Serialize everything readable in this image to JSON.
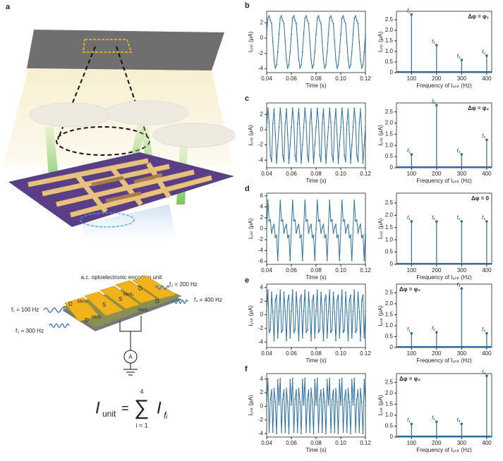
{
  "figure": {
    "panel_labels": [
      "a",
      "b",
      "c",
      "d",
      "e",
      "f"
    ],
    "illustration": {
      "unit_title": "a.c. optoelectronic encoding unit",
      "frequencies": [
        "f₁ = 100 Hz",
        "f₂ = 200 Hz",
        "f₃ = 300 Hz",
        "f₄ = 400 Hz"
      ],
      "electrodes": [
        "D",
        "S",
        "S",
        "D",
        "D",
        "D"
      ],
      "materials": [
        "MoS₂",
        "MoS₂",
        "MoS₂",
        "MoS₂"
      ],
      "meter": "A"
    },
    "equation": {
      "lhs": "I",
      "lhs_sub": "unit",
      "eq": "=",
      "sum": "∑",
      "upper": "4",
      "lower": "i = 1",
      "term": "I",
      "term_sub": "fᵢ"
    }
  },
  "chart_data": [
    {
      "type": "line",
      "color": "#2b6fa0",
      "xlabel": "Time (s)",
      "ylabel": "Iᵤₙᵢₜ (μA)",
      "x": [
        0.04,
        0.041,
        0.042,
        0.043,
        0.044,
        0.045,
        0.046,
        0.047,
        0.048,
        0.049,
        0.05,
        0.051,
        0.052,
        0.053,
        0.054,
        0.055,
        0.056,
        0.057,
        0.058,
        0.059,
        0.06,
        0.061,
        0.062,
        0.063,
        0.064,
        0.065,
        0.066,
        0.067,
        0.068,
        0.069,
        0.07,
        0.071,
        0.072,
        0.073,
        0.074,
        0.075,
        0.076,
        0.077,
        0.078,
        0.079,
        0.08,
        0.081,
        0.082,
        0.083,
        0.084,
        0.085,
        0.086,
        0.087,
        0.088,
        0.089,
        0.09,
        0.091,
        0.092,
        0.093,
        0.094,
        0.095,
        0.096,
        0.097,
        0.098,
        0.099,
        0.1,
        0.101,
        0.102,
        0.103,
        0.104,
        0.105,
        0.106,
        0.107,
        0.108,
        0.109,
        0.11,
        0.111,
        0.112,
        0.113,
        0.114,
        0.115,
        0.116,
        0.117,
        0.118,
        0.119,
        0.12
      ],
      "values": [
        0.5,
        2.6,
        2.9,
        2.3,
        1.9,
        -0.5,
        -2.8,
        -3.9,
        -3.5,
        -1.8,
        0.5,
        2.6,
        2.9,
        2.3,
        1.9,
        -0.5,
        -2.8,
        -3.9,
        -3.5,
        -1.8,
        0.5,
        2.6,
        2.9,
        2.3,
        1.9,
        -0.5,
        -2.8,
        -3.9,
        -3.5,
        -1.8,
        0.5,
        2.6,
        2.9,
        2.3,
        1.9,
        -0.5,
        -2.8,
        -3.9,
        -3.5,
        -1.8,
        0.5,
        2.6,
        2.9,
        2.3,
        1.9,
        -0.5,
        -2.8,
        -3.9,
        -3.5,
        -1.8,
        0.5,
        2.6,
        2.9,
        2.3,
        1.9,
        -0.5,
        -2.8,
        -3.9,
        -3.5,
        -1.8,
        0.5,
        2.6,
        2.9,
        2.3,
        1.9,
        -0.5,
        -2.8,
        -3.9,
        -3.5,
        -1.8,
        0.5,
        2.6,
        2.9,
        2.3,
        1.9,
        -0.5,
        -2.8,
        -3.9,
        -3.5,
        -1.8,
        0.5
      ],
      "xlim": [
        0.04,
        0.12
      ],
      "xticks": [
        0.04,
        0.06,
        0.08,
        {
          "value": 0.1,
          "label": "0.10"
        },
        0.12
      ],
      "ylim": [
        -4.5,
        3.5
      ],
      "yticks": [
        -4,
        -2,
        0,
        2
      ]
    },
    {
      "type": "stem",
      "color": "#2b6fa0",
      "xlabel": "Frequency of Iᵤₙᵢₜ (Hz)",
      "ylabel": "Iᵤₙᵢₜ (μA)",
      "note": "Δφ = φ₁",
      "note_position": "top-right",
      "x": [
        100,
        200,
        300,
        400
      ],
      "values": [
        2.75,
        1.3,
        0.6,
        0.8
      ],
      "annotations": [
        "f₁",
        "f₂",
        "f₃",
        "f₄"
      ],
      "xlim": [
        40,
        420
      ],
      "xticks": [
        100,
        200,
        300,
        400
      ],
      "ylim": [
        0,
        2.9
      ],
      "yticks": [
        0,
        0.5,
        {
          "value": 1,
          "label": "1.0"
        },
        1.5,
        {
          "value": 2,
          "label": "2.0"
        },
        2.5
      ]
    },
    {
      "type": "line",
      "color": "#2b6fa0",
      "xlabel": "Time (s)",
      "ylabel": "Iᵤₙᵢₜ (μA)",
      "x": [
        0.04,
        0.041,
        0.042,
        0.043,
        0.044,
        0.045,
        0.046,
        0.047,
        0.048,
        0.049,
        0.05,
        0.051,
        0.052,
        0.053,
        0.054,
        0.055,
        0.056,
        0.057,
        0.058,
        0.059,
        0.06,
        0.061,
        0.062,
        0.063,
        0.064,
        0.065,
        0.066,
        0.067,
        0.068,
        0.069,
        0.07,
        0.071,
        0.072,
        0.073,
        0.074,
        0.075,
        0.076,
        0.077,
        0.078,
        0.079,
        0.08,
        0.081,
        0.082,
        0.083,
        0.084,
        0.085,
        0.086,
        0.087,
        0.088,
        0.089,
        0.09,
        0.091,
        0.092,
        0.093,
        0.094,
        0.095,
        0.096,
        0.097,
        0.098,
        0.099,
        0.1,
        0.101,
        0.102,
        0.103,
        0.104,
        0.105,
        0.106,
        0.107,
        0.108,
        0.109,
        0.11,
        0.111,
        0.112,
        0.113,
        0.114,
        0.115,
        0.116,
        0.117,
        0.118,
        0.119,
        0.12
      ],
      "values": [
        0.3,
        2.8,
        1.0,
        -3.4,
        -4.2,
        0.8,
        2.7,
        -0.6,
        -4.4,
        -2.0,
        0.3,
        2.8,
        1.0,
        -3.4,
        -4.2,
        0.8,
        2.7,
        -0.6,
        -4.4,
        -2.0,
        0.3,
        2.8,
        1.0,
        -3.4,
        -4.2,
        0.8,
        2.7,
        -0.6,
        -4.4,
        -2.0,
        0.3,
        2.8,
        1.0,
        -3.4,
        -4.2,
        0.8,
        2.7,
        -0.6,
        -4.4,
        -2.0,
        0.3,
        2.8,
        1.0,
        -3.4,
        -4.2,
        0.8,
        2.7,
        -0.6,
        -4.4,
        -2.0,
        0.3,
        2.8,
        1.0,
        -3.4,
        -4.2,
        0.8,
        2.7,
        -0.6,
        -4.4,
        -2.0,
        0.3,
        2.8,
        1.0,
        -3.4,
        -4.2,
        0.8,
        2.7,
        -0.6,
        -4.4,
        -2.0,
        0.3,
        2.8,
        1.0,
        -3.4,
        -4.2,
        0.8,
        2.7,
        -0.6,
        -4.4,
        -2.0,
        0.3
      ],
      "xlim": [
        0.04,
        0.12
      ],
      "xticks": [
        0.04,
        0.06,
        0.08,
        {
          "value": 0.1,
          "label": "0.10"
        },
        0.12
      ],
      "ylim": [
        -5,
        3.5
      ],
      "yticks": [
        -4,
        -2,
        0,
        2
      ]
    },
    {
      "type": "stem",
      "color": "#2b6fa0",
      "xlabel": "Frequency of Iᵤₙᵢₜ (Hz)",
      "ylabel": "Iᵤₙᵢₜ (μA)",
      "note": "Δφ = φ₂",
      "note_position": "top-right",
      "x": [
        100,
        200,
        300,
        400
      ],
      "values": [
        0.6,
        2.8,
        0.6,
        1.25
      ],
      "annotations": [
        "f₁",
        "f₂",
        "f₃",
        "f₄"
      ],
      "xlim": [
        40,
        420
      ],
      "xticks": [
        100,
        200,
        300,
        400
      ],
      "ylim": [
        0,
        2.9
      ],
      "yticks": [
        0,
        0.5,
        {
          "value": 1,
          "label": "1.0"
        },
        1.5,
        {
          "value": 2,
          "label": "2.0"
        },
        2.5
      ]
    },
    {
      "type": "line",
      "color": "#2b6fa0",
      "xlabel": "Time (s)",
      "ylabel": "Iᵤₙᵢₜ (μA)",
      "x": [
        0.04,
        0.041,
        0.042,
        0.043,
        0.044,
        0.045,
        0.046,
        0.047,
        0.048,
        0.049,
        0.05,
        0.051,
        0.052,
        0.053,
        0.054,
        0.055,
        0.056,
        0.057,
        0.058,
        0.059,
        0.06,
        0.061,
        0.062,
        0.063,
        0.064,
        0.065,
        0.066,
        0.067,
        0.068,
        0.069,
        0.07,
        0.071,
        0.072,
        0.073,
        0.074,
        0.075,
        0.076,
        0.077,
        0.078,
        0.079,
        0.08,
        0.081,
        0.082,
        0.083,
        0.084,
        0.085,
        0.086,
        0.087,
        0.088,
        0.089,
        0.09,
        0.091,
        0.092,
        0.093,
        0.094,
        0.095,
        0.096,
        0.097,
        0.098,
        0.099,
        0.1,
        0.101,
        0.102,
        0.103,
        0.104,
        0.105,
        0.106,
        0.107,
        0.108,
        0.109,
        0.11,
        0.111,
        0.112,
        0.113,
        0.114,
        0.115,
        0.116,
        0.117,
        0.118,
        0.119,
        0.12
      ],
      "values": [
        0,
        5.2,
        1.4,
        1.6,
        -0.8,
        0.2,
        0.8,
        -1.6,
        -1.2,
        -5.8,
        0,
        5.2,
        1.4,
        1.6,
        -0.8,
        0.2,
        0.8,
        -1.6,
        -1.2,
        -5.8,
        0,
        5.2,
        1.4,
        1.6,
        -0.8,
        0.2,
        0.8,
        -1.6,
        -1.2,
        -5.8,
        0,
        5.2,
        1.4,
        1.6,
        -0.8,
        0.2,
        0.8,
        -1.6,
        -1.2,
        -5.8,
        0,
        5.2,
        1.4,
        1.6,
        -0.8,
        0.2,
        0.8,
        -1.6,
        -1.2,
        -5.8,
        0,
        5.2,
        1.4,
        1.6,
        -0.8,
        0.2,
        0.8,
        -1.6,
        -1.2,
        -5.8,
        0,
        5.2,
        1.4,
        1.6,
        -0.8,
        0.2,
        0.8,
        -1.6,
        -1.2,
        -5.8,
        0,
        5.2,
        1.4,
        1.6,
        -0.8,
        0.2,
        0.8,
        -1.6,
        -1.2,
        -5.8,
        0
      ],
      "xlim": [
        0.04,
        0.12
      ],
      "xticks": [
        0.04,
        0.06,
        0.08,
        {
          "value": 0.1,
          "label": "0.10"
        },
        0.12
      ],
      "ylim": [
        -6.5,
        6.5
      ],
      "yticks": [
        -6,
        -4,
        -2,
        0,
        2,
        4,
        6
      ]
    },
    {
      "type": "stem",
      "color": "#2b6fa0",
      "xlabel": "Frequency of Iᵤₙᵢₜ (Hz)",
      "ylabel": "Iᵤₙᵢₜ (μA)",
      "note": "Δφ = 0",
      "note_position": "top-right",
      "x": [
        100,
        200,
        300,
        400
      ],
      "values": [
        1.75,
        1.75,
        1.75,
        1.75
      ],
      "annotations": [
        "f₁",
        "f₂",
        "f₃",
        "f₄"
      ],
      "xlim": [
        40,
        420
      ],
      "xticks": [
        100,
        200,
        300,
        400
      ],
      "ylim": [
        0,
        2.9
      ],
      "yticks": [
        0,
        0.5,
        {
          "value": 1,
          "label": "1.0"
        },
        1.5,
        {
          "value": 2,
          "label": "2.0"
        },
        2.5
      ]
    },
    {
      "type": "line",
      "color": "#2b6fa0",
      "xlabel": "Time (s)",
      "ylabel": "Iᵤₙᵢₜ (μA)",
      "x": [
        0.04,
        0.041,
        0.042,
        0.043,
        0.044,
        0.045,
        0.046,
        0.047,
        0.048,
        0.049,
        0.05,
        0.051,
        0.052,
        0.053,
        0.054,
        0.055,
        0.056,
        0.057,
        0.058,
        0.059,
        0.06,
        0.061,
        0.062,
        0.063,
        0.064,
        0.065,
        0.066,
        0.067,
        0.068,
        0.069,
        0.07,
        0.071,
        0.072,
        0.073,
        0.074,
        0.075,
        0.076,
        0.077,
        0.078,
        0.079,
        0.08,
        0.081,
        0.082,
        0.083,
        0.084,
        0.085,
        0.086,
        0.087,
        0.088,
        0.089,
        0.09,
        0.091,
        0.092,
        0.093,
        0.094,
        0.095,
        0.096,
        0.097,
        0.098,
        0.099,
        0.1,
        0.101,
        0.102,
        0.103,
        0.104,
        0.105,
        0.106,
        0.107,
        0.108,
        0.109,
        0.11,
        0.111,
        0.112,
        0.113,
        0.114,
        0.115,
        0.116,
        0.117,
        0.118,
        0.119,
        0.12
      ],
      "values": [
        0.5,
        3.6,
        -2.6,
        -2.2,
        3.3,
        0.4,
        -3.8,
        2.1,
        2.9,
        -3.4,
        0.5,
        3.6,
        -2.6,
        -2.2,
        3.3,
        0.4,
        -3.8,
        2.1,
        2.9,
        -3.4,
        0.5,
        3.6,
        -2.6,
        -2.2,
        3.3,
        0.4,
        -3.8,
        2.1,
        2.9,
        -3.4,
        0.5,
        3.6,
        -2.6,
        -2.2,
        3.3,
        0.4,
        -3.8,
        2.1,
        2.9,
        -3.4,
        0.5,
        3.6,
        -2.6,
        -2.2,
        3.3,
        0.4,
        -3.8,
        2.1,
        2.9,
        -3.4,
        0.5,
        3.6,
        -2.6,
        -2.2,
        3.3,
        0.4,
        -3.8,
        2.1,
        2.9,
        -3.4,
        0.5,
        3.6,
        -2.6,
        -2.2,
        3.3,
        0.4,
        -3.8,
        2.1,
        2.9,
        -3.4,
        0.5,
        3.6,
        -2.6,
        -2.2,
        3.3,
        0.4,
        -3.8,
        2.1,
        2.9,
        -3.4,
        0.5
      ],
      "xlim": [
        0.04,
        0.12
      ],
      "xticks": [
        0.04,
        0.06,
        0.08,
        {
          "value": 0.1,
          "label": "0.10"
        },
        0.12
      ],
      "ylim": [
        -4.8,
        4.5
      ],
      "yticks": [
        -4,
        -2,
        0,
        2,
        4
      ]
    },
    {
      "type": "stem",
      "color": "#2b6fa0",
      "xlabel": "Frequency of Iᵤₙᵢₜ (Hz)",
      "ylabel": "Iᵤₙᵢₜ (μA)",
      "note": "Δφ = φ₃",
      "note_position": "top-left",
      "x": [
        100,
        200,
        300,
        400
      ],
      "values": [
        0.65,
        0.7,
        2.7,
        0.65
      ],
      "annotations": [
        "f₁",
        "f₂",
        "f₃",
        "f₄"
      ],
      "xlim": [
        40,
        420
      ],
      "xticks": [
        100,
        200,
        300,
        400
      ],
      "ylim": [
        0,
        2.9
      ],
      "yticks": [
        0,
        0.5,
        {
          "value": 1,
          "label": "1.0"
        },
        1.5,
        {
          "value": 2,
          "label": "2.0"
        },
        2.5
      ]
    },
    {
      "type": "line",
      "color": "#2b6fa0",
      "xlabel": "Time (s)",
      "ylabel": "Iᵤₙᵢₜ (μA)",
      "x": [
        0.04,
        0.041,
        0.042,
        0.043,
        0.044,
        0.045,
        0.046,
        0.047,
        0.048,
        0.049,
        0.05,
        0.051,
        0.052,
        0.053,
        0.054,
        0.055,
        0.056,
        0.057,
        0.058,
        0.059,
        0.06,
        0.061,
        0.062,
        0.063,
        0.064,
        0.065,
        0.066,
        0.067,
        0.068,
        0.069,
        0.07,
        0.071,
        0.072,
        0.073,
        0.074,
        0.075,
        0.076,
        0.077,
        0.078,
        0.079,
        0.08,
        0.081,
        0.082,
        0.083,
        0.084,
        0.085,
        0.086,
        0.087,
        0.088,
        0.089,
        0.09,
        0.091,
        0.092,
        0.093,
        0.094,
        0.095,
        0.096,
        0.097,
        0.098,
        0.099,
        0.1,
        0.101,
        0.102,
        0.103,
        0.104,
        0.105,
        0.106,
        0.107,
        0.108,
        0.109,
        0.11,
        0.111,
        0.112,
        0.113,
        0.114,
        0.115,
        0.116,
        0.117,
        0.118,
        0.119,
        0.12
      ],
      "values": [
        0.2,
        4.1,
        -3.8,
        1.0,
        2.4,
        -3.8,
        2.6,
        0.6,
        -4.0,
        3.9,
        0.2,
        4.1,
        -3.8,
        1.0,
        2.4,
        -3.8,
        2.6,
        0.6,
        -4.0,
        3.9,
        0.2,
        4.1,
        -3.8,
        1.0,
        2.4,
        -3.8,
        2.6,
        0.6,
        -4.0,
        3.9,
        0.2,
        4.1,
        -3.8,
        1.0,
        2.4,
        -3.8,
        2.6,
        0.6,
        -4.0,
        3.9,
        0.2,
        4.1,
        -3.8,
        1.0,
        2.4,
        -3.8,
        2.6,
        0.6,
        -4.0,
        3.9,
        0.2,
        4.1,
        -3.8,
        1.0,
        2.4,
        -3.8,
        2.6,
        0.6,
        -4.0,
        3.9,
        0.2,
        4.1,
        -3.8,
        1.0,
        2.4,
        -3.8,
        2.6,
        0.6,
        -4.0,
        3.9,
        0.2,
        4.1,
        -3.8,
        1.0,
        2.4,
        -3.8,
        2.6,
        0.6,
        -4.0,
        3.9,
        0.2
      ],
      "xlim": [
        0.04,
        0.12
      ],
      "xticks": [
        0.04,
        0.06,
        0.08,
        {
          "value": 0.1,
          "label": "0.10"
        },
        0.12
      ],
      "ylim": [
        -4.5,
        4.8
      ],
      "yticks": [
        -4,
        -2,
        0,
        2,
        4
      ]
    },
    {
      "type": "stem",
      "color": "#2b6fa0",
      "xlabel": "Frequency of Iᵤₙᵢₜ (Hz)",
      "ylabel": "Iᵤₙᵢₜ (μA)",
      "note": "Δφ = φ₄",
      "note_position": "top-left",
      "x": [
        100,
        200,
        300,
        400
      ],
      "values": [
        0.6,
        0.7,
        0.6,
        2.8
      ],
      "annotations": [
        "f₁",
        "f₂",
        "f₃",
        "f₄"
      ],
      "xlim": [
        40,
        420
      ],
      "xticks": [
        100,
        200,
        300,
        400
      ],
      "ylim": [
        0,
        2.9
      ],
      "yticks": [
        0,
        0.5,
        {
          "value": 1,
          "label": "1.0"
        },
        1.5,
        {
          "value": 2,
          "label": "2.0"
        },
        2.5
      ]
    }
  ]
}
